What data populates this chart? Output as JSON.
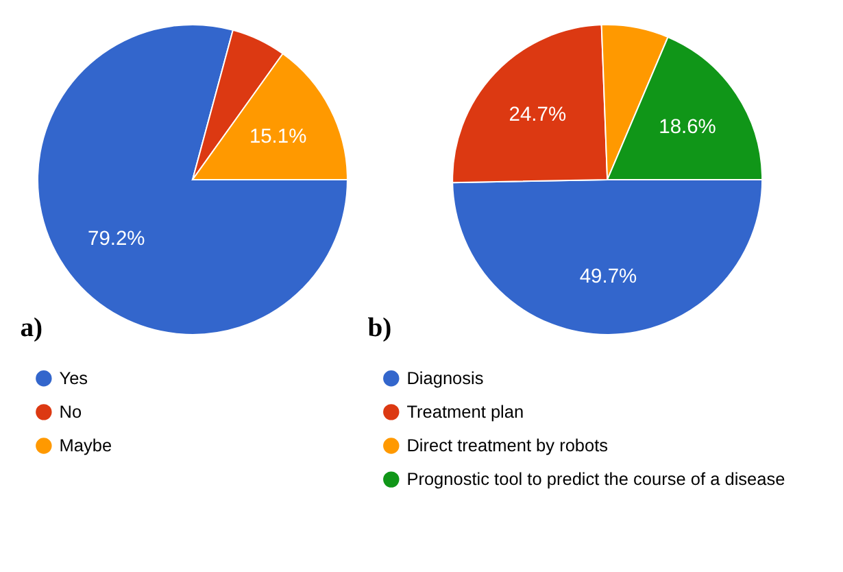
{
  "chart_data": [
    {
      "type": "pie",
      "categories": [
        "Yes",
        "No",
        "Maybe"
      ],
      "values": [
        79.2,
        5.7,
        15.1
      ],
      "colors": [
        "#3366cc",
        "#dc3912",
        "#ff9900"
      ],
      "value_labels": [
        "79.2%",
        null,
        "15.1%"
      ],
      "legend": "bottom",
      "annotations": [
        "a)"
      ]
    },
    {
      "type": "pie",
      "categories": [
        "Diagnosis",
        "Treatment plan",
        "Direct treatment by robots",
        "Prognostic tool to predict the course of a disease"
      ],
      "values": [
        49.7,
        24.7,
        7.0,
        18.6
      ],
      "colors": [
        "#3366cc",
        "#dc3912",
        "#ff9900",
        "#109618"
      ],
      "value_labels": [
        "49.7%",
        "24.7%",
        null,
        "18.6%"
      ],
      "legend": "bottom",
      "annotations": [
        "b)"
      ]
    }
  ]
}
